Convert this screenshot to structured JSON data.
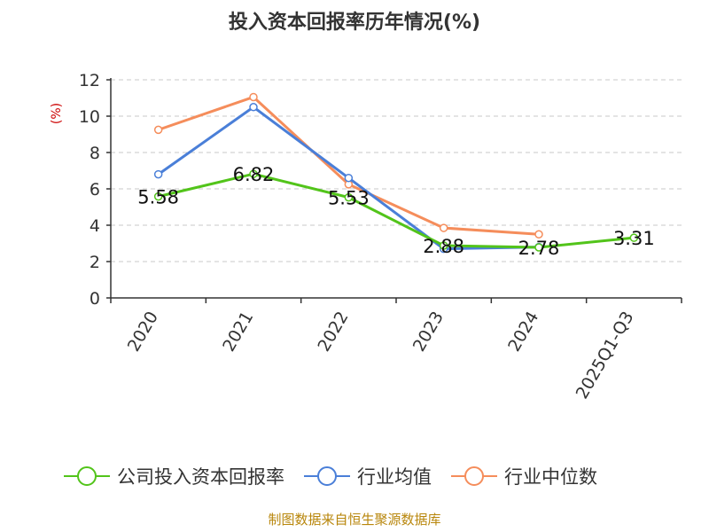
{
  "chart_data": {
    "type": "line",
    "title": "投入资本回报率历年情况(%)",
    "ylabel": "(%)",
    "categories": [
      "2020",
      "2021",
      "2022",
      "2023",
      "2024",
      "2025Q1-Q3"
    ],
    "ylim": [
      0,
      12
    ],
    "yticks": [
      0,
      2,
      4,
      6,
      8,
      10,
      12
    ],
    "grid": true,
    "legend_position": "bottom",
    "series": [
      {
        "name": "公司投入资本回报率",
        "color": "#52c41a",
        "values": [
          5.58,
          6.82,
          5.53,
          2.88,
          2.78,
          3.31
        ],
        "labels": [
          "5.58",
          "6.82",
          "5.53",
          "2.88",
          "2.78",
          "3.31"
        ]
      },
      {
        "name": "行业均值",
        "color": "#4a7fd8",
        "values": [
          6.8,
          10.5,
          6.6,
          2.7,
          2.8,
          null
        ]
      },
      {
        "name": "行业中位数",
        "color": "#f58d5b",
        "values": [
          9.25,
          11.05,
          6.25,
          3.85,
          3.5,
          null
        ]
      }
    ]
  },
  "source": "制图数据来自恒生聚源数据库"
}
